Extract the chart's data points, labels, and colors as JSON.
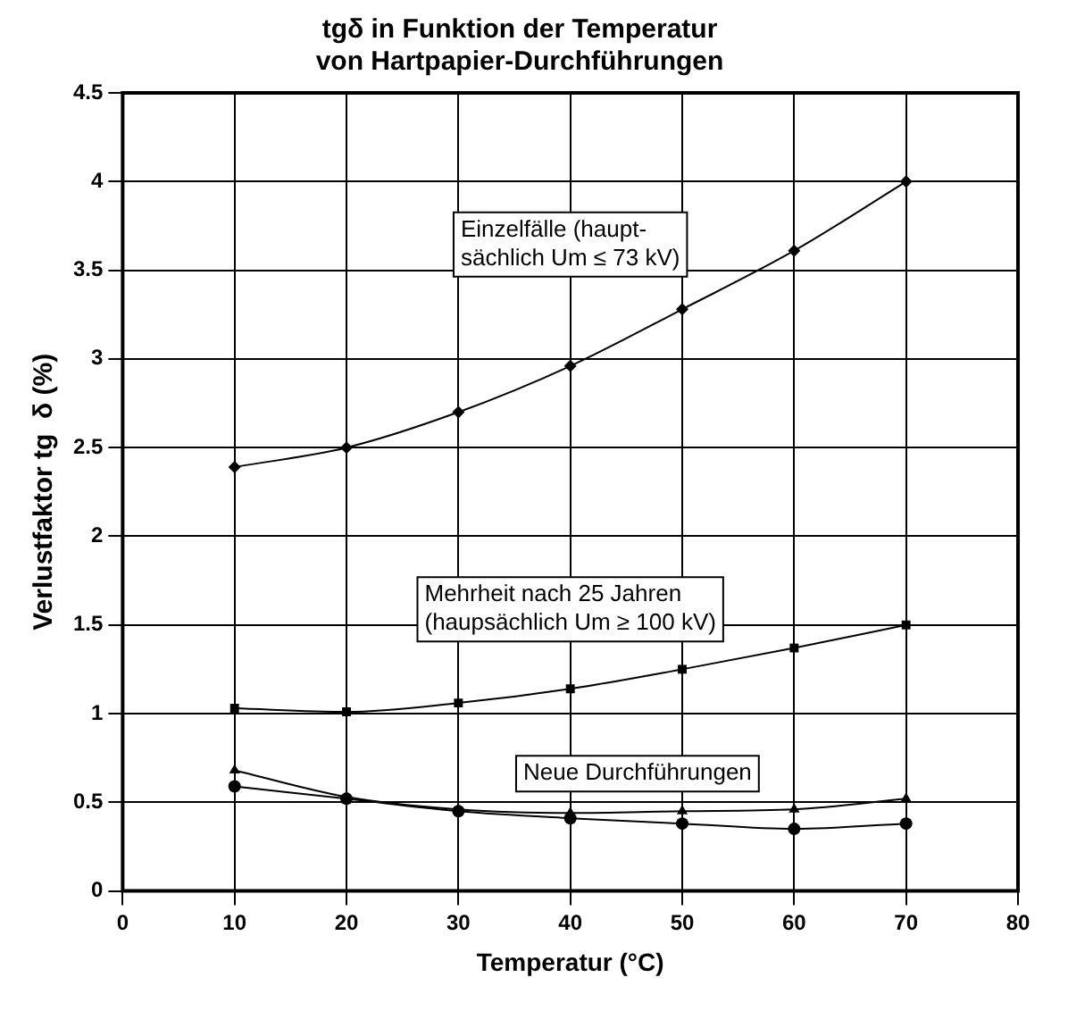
{
  "chart_data": {
    "type": "line",
    "title": "tgδ in Funktion der Temperatur\nvon Hartpapier-Durchführungen",
    "xlabel": "Temperatur (°C)",
    "ylabel": "Verlustfaktor tg  δ (%)",
    "x": [
      10,
      20,
      30,
      40,
      50,
      60,
      70
    ],
    "series": [
      {
        "color": "#000000",
        "marker": "diamond",
        "values": [
          2.39,
          2.5,
          2.7,
          2.96,
          3.28,
          3.61,
          4.0
        ]
      },
      {
        "color": "#000000",
        "marker": "square",
        "values": [
          1.03,
          1.01,
          1.06,
          1.14,
          1.25,
          1.37,
          1.5
        ]
      },
      {
        "color": "#000000",
        "marker": "triangle",
        "values": [
          0.68,
          0.53,
          0.46,
          0.44,
          0.45,
          0.46,
          0.52
        ]
      },
      {
        "color": "#000000",
        "marker": "circle",
        "values": [
          0.59,
          0.52,
          0.45,
          0.41,
          0.38,
          0.35,
          0.38
        ]
      }
    ],
    "xlim": [
      0,
      80
    ],
    "xticks": [
      0,
      10,
      20,
      30,
      40,
      50,
      60,
      70,
      80
    ],
    "ylim": [
      0,
      4.5
    ],
    "yticks": [
      0,
      0.5,
      1,
      1.5,
      2,
      2.5,
      3,
      3.5,
      4,
      4.5
    ],
    "grid": true,
    "legend": false,
    "line_style": "solid",
    "annotations": [
      "Einzelfälle (haupt-\nsächlich Um ≤ 73 kV)",
      "Mehrheit nach 25 Jahren\n(haupsächlich Um ≥ 100 kV)",
      "Neue Durchführungen"
    ]
  }
}
